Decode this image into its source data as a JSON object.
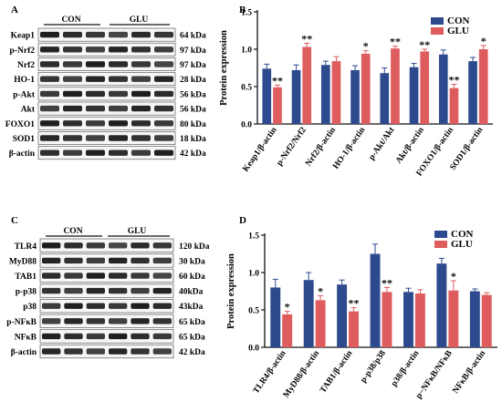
{
  "colors": {
    "con": "#2E4A8E",
    "glu": "#DE5B5E",
    "axis": "#111111"
  },
  "panels": {
    "A": {
      "letter": "A",
      "group_labels": [
        "CON",
        "GLU"
      ],
      "rows": [
        {
          "name": "Keap1",
          "kda": "64 kDa"
        },
        {
          "name": "p-Nrf2",
          "kda": "97 kDa"
        },
        {
          "name": "Nrf2",
          "kda": "97 kDa"
        },
        {
          "name": "HO-1",
          "kda": "28 kDa"
        },
        {
          "name": "p-Akt",
          "kda": "56 kDa"
        },
        {
          "name": "Akt",
          "kda": "56 kDa"
        },
        {
          "name": "FOXO1",
          "kda": "80 kDa"
        },
        {
          "name": "SOD1",
          "kda": "18 kDa"
        },
        {
          "name": "β-actin",
          "kda": "42 kDa"
        }
      ]
    },
    "C": {
      "letter": "C",
      "group_labels": [
        "CON",
        "GLU"
      ],
      "rows": [
        {
          "name": "TLR4",
          "kda": "120 kDa"
        },
        {
          "name": "MyD88",
          "kda": "30 kDa"
        },
        {
          "name": "TAB1",
          "kda": "60 kDa"
        },
        {
          "name": "p-p38",
          "kda": "40kDa"
        },
        {
          "name": "p38",
          "kda": "43kDa"
        },
        {
          "name": "p-NFκB",
          "kda": "65 kDa"
        },
        {
          "name": "NFκB",
          "kda": "65 kDa"
        },
        {
          "name": "β-actin",
          "kda": "42 kDa"
        }
      ]
    }
  },
  "chart_data": [
    {
      "panel": "B",
      "type": "bar",
      "ylabel": "Protein expression",
      "ylim": [
        0,
        1.5
      ],
      "yticks": [
        "0.0",
        "0.5",
        "1.0",
        "1.5"
      ],
      "legend": "top-right",
      "categories": [
        "Keap1/β-actin",
        "p-Nrf2/Nrf2",
        "Nrf2/β-actin",
        "HO-1/β-actin",
        "p-Akt/Akt",
        "Akt/β-actin",
        "FOXO1/β-actin",
        "SOD1/β-actin"
      ],
      "series": [
        {
          "name": "CON",
          "values": [
            0.74,
            0.72,
            0.79,
            0.72,
            0.68,
            0.76,
            0.93,
            0.84
          ],
          "errors": [
            0.06,
            0.07,
            0.05,
            0.06,
            0.07,
            0.05,
            0.06,
            0.05
          ]
        },
        {
          "name": "GLU",
          "values": [
            0.49,
            1.03,
            0.84,
            0.94,
            1.01,
            0.97,
            0.48,
            1.0
          ],
          "errors": [
            0.03,
            0.05,
            0.06,
            0.04,
            0.03,
            0.03,
            0.05,
            0.05
          ]
        }
      ],
      "significance": [
        "**",
        "**",
        "",
        "*",
        "**",
        "**",
        "**",
        "*"
      ]
    },
    {
      "panel": "D",
      "type": "bar",
      "ylabel": "Protein expression",
      "ylim": [
        0,
        1.5
      ],
      "yticks": [
        "0.0",
        "0.5",
        "1.0",
        "1.5"
      ],
      "legend": "top-right",
      "categories": [
        "TLR4/β-actin",
        "MyD88/β-actin",
        "TAB1/β-actin",
        "p-p38/p38",
        "p38/β-actin",
        "p−NFκB/NFκB",
        "NFκB/β-actin"
      ],
      "series": [
        {
          "name": "CON",
          "values": [
            0.8,
            0.9,
            0.84,
            1.25,
            0.74,
            1.12,
            0.75
          ],
          "errors": [
            0.11,
            0.1,
            0.06,
            0.13,
            0.05,
            0.07,
            0.03
          ]
        },
        {
          "name": "GLU",
          "values": [
            0.44,
            0.63,
            0.48,
            0.74,
            0.72,
            0.76,
            0.7
          ],
          "errors": [
            0.04,
            0.06,
            0.05,
            0.06,
            0.05,
            0.13,
            0.03
          ]
        }
      ],
      "significance": [
        "*",
        "*",
        "**",
        "**",
        "",
        "*",
        ""
      ]
    }
  ]
}
